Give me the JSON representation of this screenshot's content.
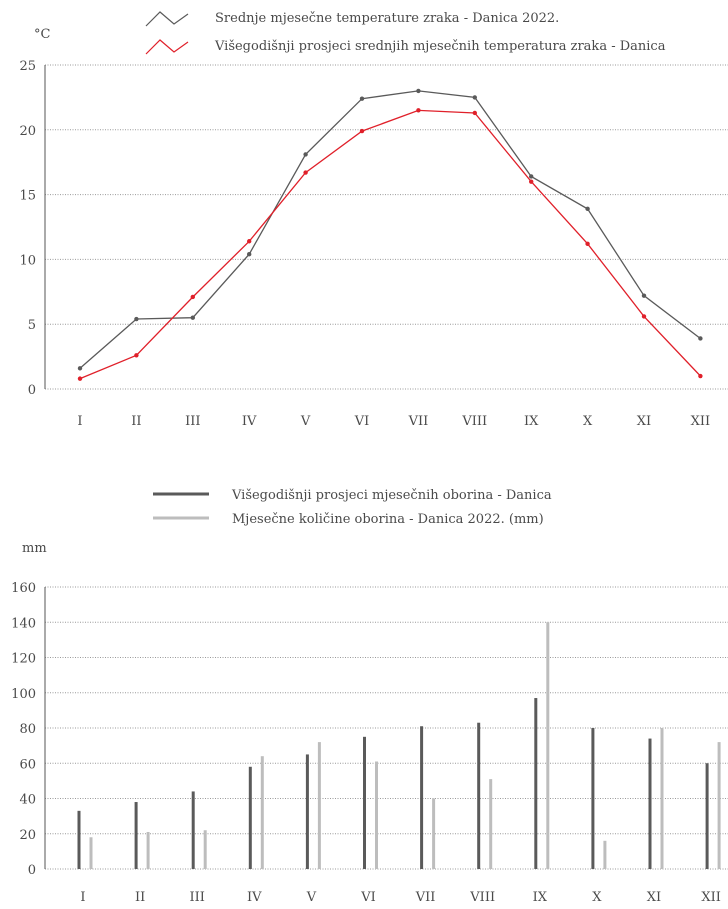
{
  "colors": {
    "dark": "#5a5a5a",
    "light": "#bdbdbd",
    "red": "#e0202a",
    "text": "#4a4a4a"
  },
  "chart_data": [
    {
      "type": "line",
      "unit": "°C",
      "categories": [
        "I",
        "II",
        "III",
        "IV",
        "V",
        "VI",
        "VII",
        "VIII",
        "IX",
        "X",
        "XI",
        "XII"
      ],
      "series": [
        {
          "name": "Srednje mjesečne temperature zraka - Danica 2022.",
          "color": "#5a5a5a",
          "values": [
            1.6,
            5.4,
            5.5,
            10.4,
            18.1,
            22.4,
            23.0,
            22.5,
            16.4,
            13.9,
            7.2,
            3.9
          ]
        },
        {
          "name": "Višegodišnji prosjeci srednjih mjesečnih temperatura zraka - Danica",
          "color": "#e0202a",
          "values": [
            0.8,
            2.6,
            7.1,
            11.4,
            16.7,
            19.9,
            21.5,
            21.3,
            16.0,
            11.2,
            5.6,
            1.0
          ]
        }
      ],
      "yticks": [
        0,
        5,
        10,
        15,
        20,
        25
      ],
      "ylim": [
        0,
        25
      ],
      "grid": true
    },
    {
      "type": "bar",
      "unit": "mm",
      "categories": [
        "I",
        "II",
        "III",
        "IV",
        "V",
        "VI",
        "VII",
        "VIII",
        "IX",
        "X",
        "XI",
        "XII"
      ],
      "series": [
        {
          "name": "Višegodišnji prosjeci mjesečnih oborina - Danica",
          "color": "#5a5a5a",
          "values": [
            33,
            38,
            44,
            58,
            65,
            75,
            81,
            83,
            97,
            80,
            74,
            60
          ]
        },
        {
          "name": "Mjesečne količine oborina - Danica 2022. (mm)",
          "color": "#bdbdbd",
          "values": [
            18,
            21,
            22,
            64,
            72,
            61,
            40,
            51,
            140,
            16,
            80,
            72
          ]
        }
      ],
      "yticks": [
        0,
        20,
        40,
        60,
        80,
        100,
        120,
        140,
        160
      ],
      "ylim": [
        0,
        160
      ],
      "grid": true
    }
  ]
}
